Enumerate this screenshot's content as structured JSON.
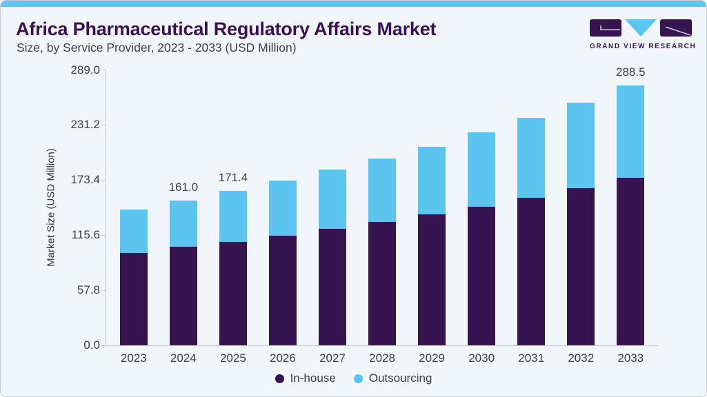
{
  "header": {
    "title": "Africa Pharmaceutical Regulatory Affairs Market",
    "subtitle": "Size, by Service Provider, 2023 - 2033 (USD Million)"
  },
  "logo": {
    "text": "GRAND VIEW RESEARCH"
  },
  "colors": {
    "accent_top_bar": "#5CC7F2",
    "card_background": "#F0F6FA",
    "title_purple": "#3A1053",
    "text_gray": "#3B4046",
    "axis_gray": "#C9CDD3",
    "inhouse_purple": "#351450",
    "outsourcing_blue": "#5BC5F0"
  },
  "chart_data": {
    "type": "bar",
    "stacked": true,
    "title": "Africa Pharmaceutical Regulatory Affairs Market Size, by Service Provider, 2023 - 2033 (USD Million)",
    "categories": [
      "2023",
      "2024",
      "2025",
      "2026",
      "2027",
      "2028",
      "2029",
      "2030",
      "2031",
      "2032",
      "2033"
    ],
    "series": [
      {
        "name": "In-house",
        "color": "#351450",
        "values": [
          102.6,
          109.5,
          114.6,
          121.7,
          129.4,
          137.1,
          145.8,
          154.2,
          163.6,
          174.6,
          186.1
        ]
      },
      {
        "name": "Outsourcing",
        "color": "#5BC5F0",
        "values": [
          48.5,
          51.5,
          56.8,
          61.1,
          65.7,
          70.2,
          75.1,
          82.8,
          89.5,
          95.4,
          102.4
        ]
      }
    ],
    "totals": [
      151.1,
      161.0,
      171.4,
      182.8,
      195.1,
      207.3,
      220.9,
      237.0,
      253.1,
      270.0,
      288.5
    ],
    "bar_value_labels": [
      "",
      "161.0",
      "171.4",
      "",
      "",
      "",
      "",
      "",
      "",
      "",
      "288.5"
    ],
    "xlabel": "",
    "ylabel": "Market Size (USD Million)",
    "yticks": [
      "0.0",
      "57.8",
      "115.6",
      "173.4",
      "231.2",
      "289.0"
    ],
    "ylim": [
      0,
      289
    ],
    "grid": false,
    "legend": {
      "position": "bottom",
      "items": [
        "In-house",
        "Outsourcing"
      ]
    }
  }
}
